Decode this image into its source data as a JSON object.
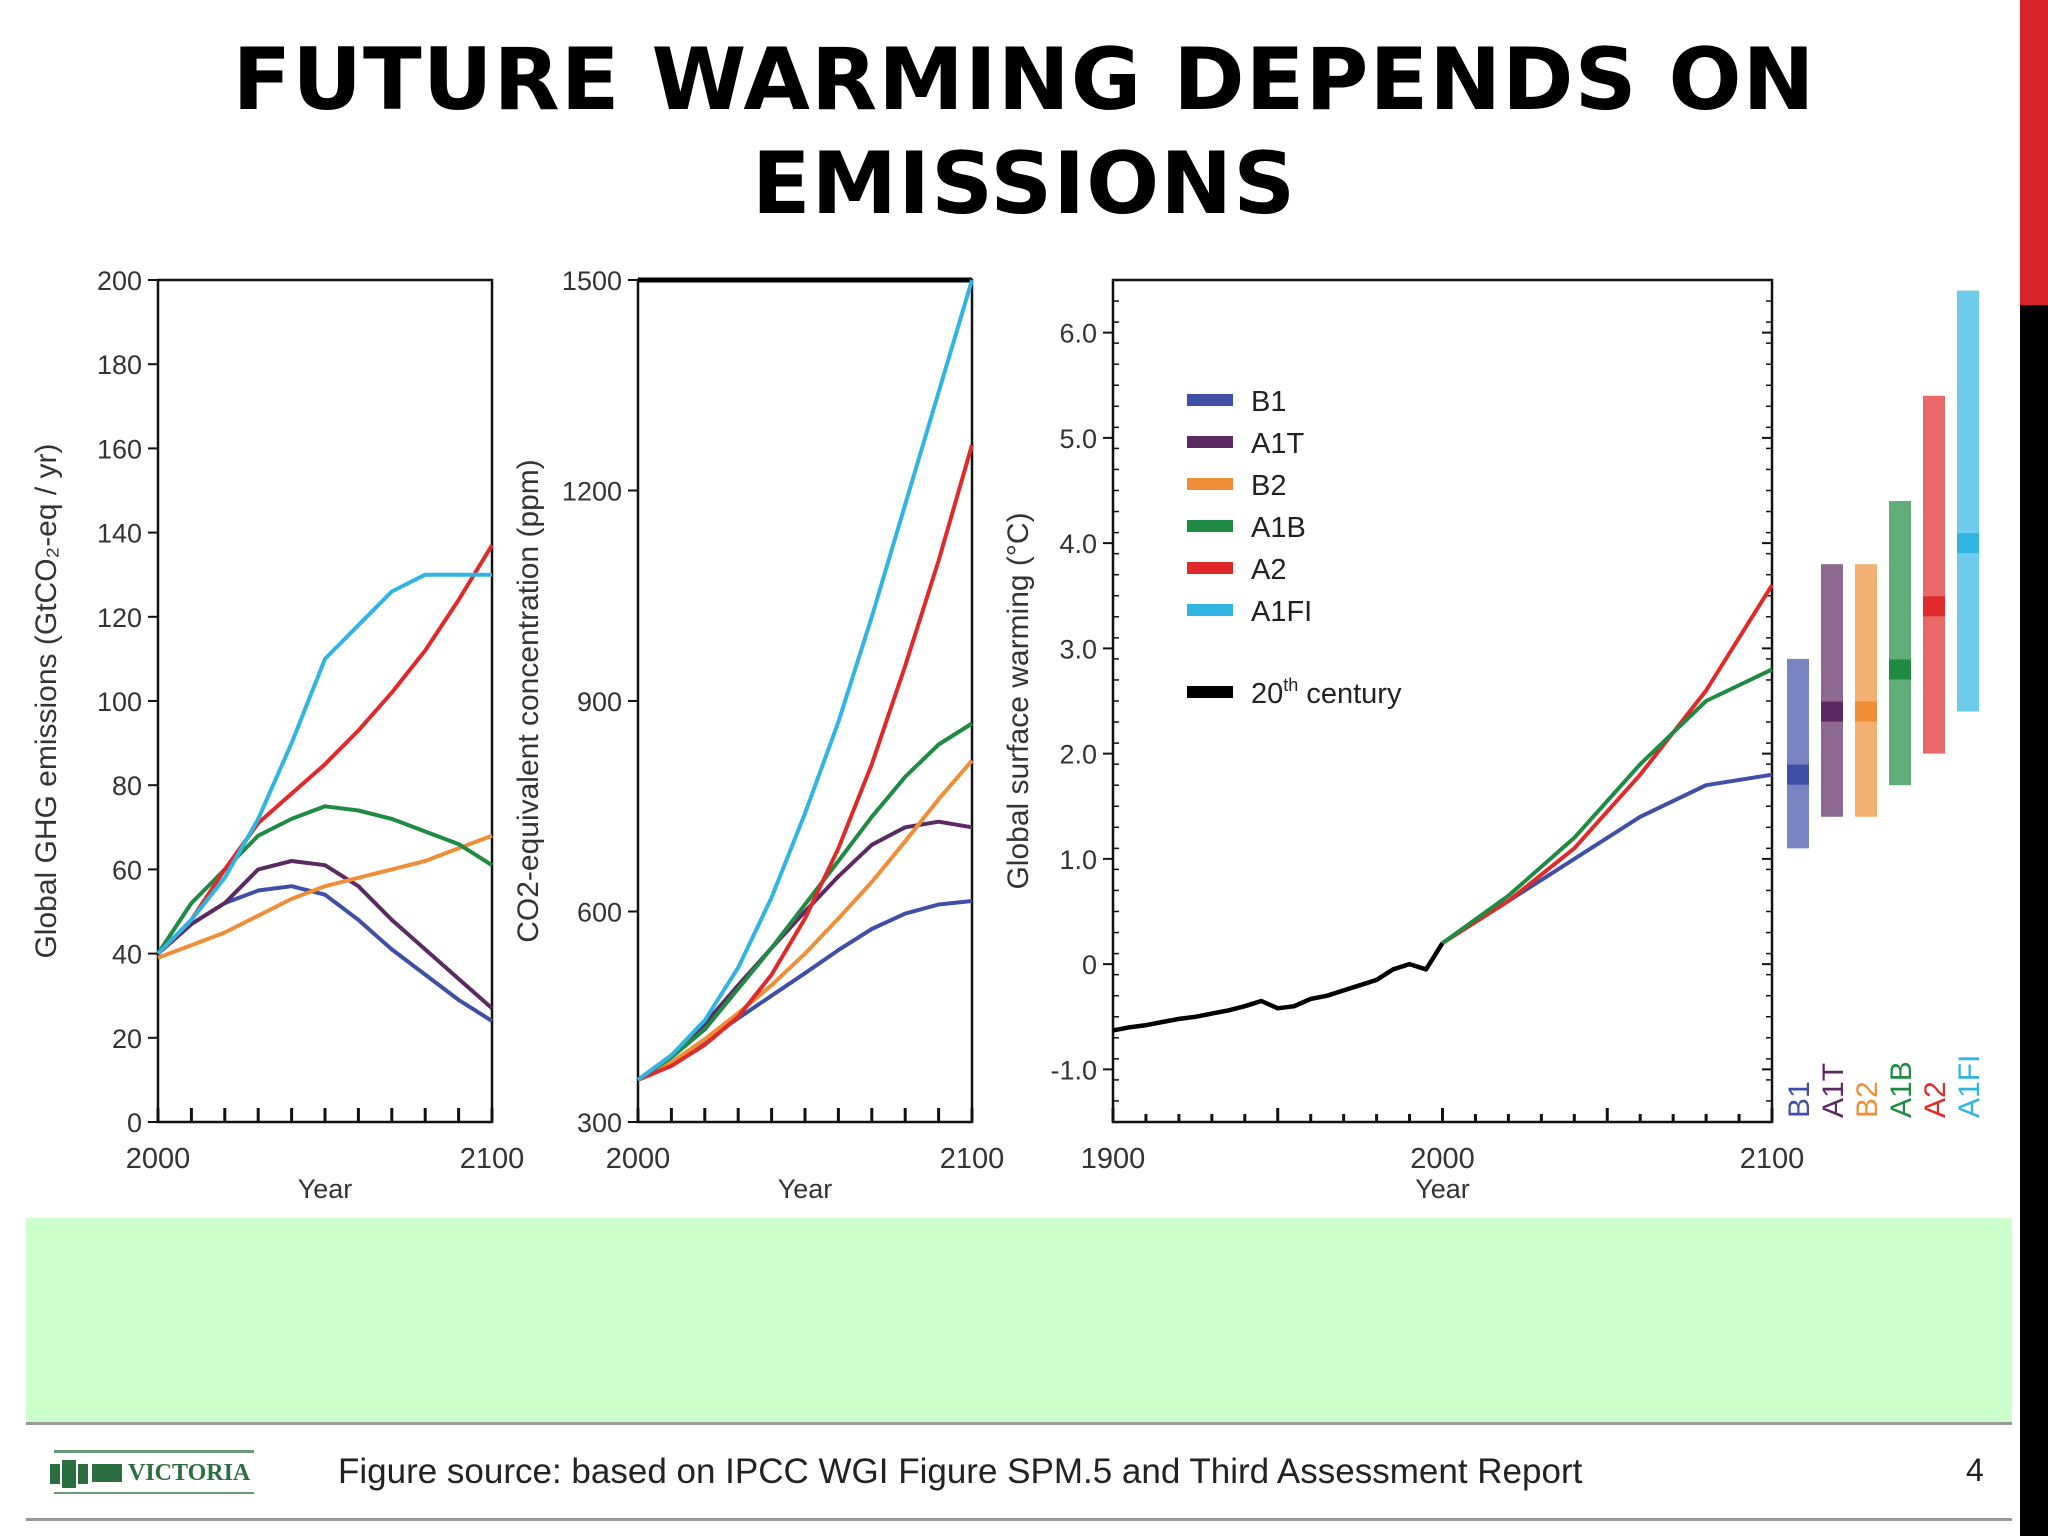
{
  "slide": {
    "title_line1": "FUTURE WARMING DEPENDS ON",
    "title_line2": "EMISSIONS",
    "footer": "Figure source: based on IPCC WGI Figure SPM.5 and Third Assessment Report",
    "page_number": "4",
    "logo_name": "VICTORIA",
    "accent_colors": {
      "red": "#d9252a",
      "black": "#000000",
      "band": "#ccffcc"
    }
  },
  "chart_data": [
    {
      "type": "line",
      "title": "",
      "xlabel": "Year",
      "ylabel": "Global GHG emissions (GtCO₂-eq / yr)",
      "xlim": [
        2000,
        2100
      ],
      "ylim": [
        0,
        200
      ],
      "x_ticks": [
        "2000",
        "2100"
      ],
      "y_ticks": [
        "0",
        "20",
        "40",
        "60",
        "80",
        "100",
        "120",
        "140",
        "160",
        "180",
        "200"
      ],
      "x": [
        2000,
        2010,
        2020,
        2030,
        2040,
        2050,
        2060,
        2070,
        2080,
        2090,
        2100
      ],
      "series": [
        {
          "name": "B1",
          "color": "#3f4fa6",
          "values": [
            40,
            47,
            52,
            55,
            56,
            54,
            48,
            41,
            35,
            29,
            24
          ]
        },
        {
          "name": "A1T",
          "color": "#5c2a63",
          "values": [
            40,
            47,
            52,
            60,
            62,
            61,
            56,
            48,
            41,
            34,
            27
          ]
        },
        {
          "name": "B2",
          "color": "#ef8e36",
          "values": [
            39,
            42,
            45,
            49,
            53,
            56,
            58,
            60,
            62,
            65,
            68
          ]
        },
        {
          "name": "A1B",
          "color": "#1e8a42",
          "values": [
            40,
            52,
            60,
            68,
            72,
            75,
            74,
            72,
            69,
            66,
            61
          ]
        },
        {
          "name": "A2",
          "color": "#e02a2a",
          "values": [
            40,
            48,
            60,
            71,
            78,
            85,
            93,
            102,
            112,
            124,
            137
          ]
        },
        {
          "name": "A1FI",
          "color": "#30b5e3",
          "values": [
            40,
            48,
            58,
            72,
            90,
            110,
            118,
            126,
            130,
            130,
            130
          ]
        }
      ]
    },
    {
      "type": "line",
      "title": "",
      "xlabel": "Year",
      "ylabel": "CO2-equivalent concentration (ppm)",
      "xlim": [
        2000,
        2100
      ],
      "ylim": [
        300,
        1500
      ],
      "x_ticks": [
        "2000",
        "2100"
      ],
      "y_ticks": [
        "300",
        "600",
        "900",
        "1200",
        "1500"
      ],
      "x": [
        2000,
        2010,
        2020,
        2030,
        2040,
        2050,
        2060,
        2070,
        2080,
        2090,
        2100
      ],
      "series": [
        {
          "name": "B1",
          "color": "#3f4fa6",
          "values": [
            360,
            385,
            415,
            448,
            480,
            512,
            545,
            575,
            597,
            610,
            615
          ]
        },
        {
          "name": "A1T",
          "color": "#5c2a63",
          "values": [
            360,
            395,
            440,
            495,
            548,
            600,
            650,
            695,
            720,
            728,
            720
          ]
        },
        {
          "name": "B2",
          "color": "#ef8e36",
          "values": [
            360,
            385,
            418,
            455,
            495,
            540,
            590,
            642,
            700,
            760,
            815
          ]
        },
        {
          "name": "A1B",
          "color": "#1e8a42",
          "values": [
            360,
            392,
            432,
            490,
            548,
            610,
            672,
            735,
            792,
            838,
            868
          ]
        },
        {
          "name": "A2",
          "color": "#e02a2a",
          "values": [
            360,
            380,
            410,
            450,
            510,
            590,
            690,
            810,
            950,
            1100,
            1265
          ]
        },
        {
          "name": "A1FI",
          "color": "#30b5e3",
          "values": [
            360,
            395,
            445,
            520,
            620,
            740,
            870,
            1020,
            1180,
            1340,
            1500
          ]
        }
      ]
    },
    {
      "type": "line",
      "title": "",
      "xlabel": "Year",
      "ylabel": "Global surface warming (°C)",
      "xlim": [
        1900,
        2100
      ],
      "ylim": [
        -1.5,
        6.5
      ],
      "x_ticks": [
        "1900",
        "2000",
        "2100"
      ],
      "y_ticks": [
        "-1.0",
        "0",
        "1.0",
        "2.0",
        "3.0",
        "4.0",
        "5.0",
        "6.0"
      ],
      "legend": "top-left",
      "legend_items": [
        {
          "name": "B1",
          "color": "#3f4fa6"
        },
        {
          "name": "A1T",
          "color": "#5c2a63"
        },
        {
          "name": "B2",
          "color": "#ef8e36"
        },
        {
          "name": "A1B",
          "color": "#1e8a42"
        },
        {
          "name": "A2",
          "color": "#e02a2a"
        },
        {
          "name": "A1FI",
          "color": "#30b5e3"
        }
      ],
      "century_label_base": "20",
      "century_label_sup": "th",
      "century_label_rest": " century",
      "century_color": "#000000",
      "series": [
        {
          "name": "20th century",
          "color": "#000000",
          "x": [
            1900,
            1905,
            1910,
            1915,
            1920,
            1925,
            1930,
            1935,
            1940,
            1945,
            1950,
            1955,
            1960,
            1965,
            1970,
            1975,
            1980,
            1985,
            1990,
            1995,
            2000
          ],
          "values": [
            -0.63,
            -0.6,
            -0.58,
            -0.55,
            -0.52,
            -0.5,
            -0.47,
            -0.44,
            -0.4,
            -0.35,
            -0.42,
            -0.4,
            -0.33,
            -0.3,
            -0.25,
            -0.2,
            -0.15,
            -0.05,
            0.0,
            -0.05,
            0.2
          ]
        },
        {
          "name": "B1",
          "color": "#3f4fa6",
          "x": [
            2000,
            2020,
            2040,
            2060,
            2080,
            2100
          ],
          "values": [
            0.2,
            0.6,
            1.0,
            1.4,
            1.7,
            1.8
          ]
        },
        {
          "name": "A2",
          "color": "#e02a2a",
          "x": [
            2000,
            2020,
            2040,
            2060,
            2080,
            2100
          ],
          "values": [
            0.2,
            0.6,
            1.1,
            1.8,
            2.6,
            3.6
          ]
        },
        {
          "name": "A1B",
          "color": "#1e8a42",
          "x": [
            2000,
            2020,
            2040,
            2060,
            2080,
            2100
          ],
          "values": [
            0.2,
            0.65,
            1.2,
            1.9,
            2.5,
            2.8
          ]
        }
      ],
      "range_bars": [
        {
          "name": "B1",
          "color": "#3f4fa6",
          "low": 1.1,
          "high": 2.9,
          "best": 1.8
        },
        {
          "name": "A1T",
          "color": "#5c2a63",
          "low": 1.4,
          "high": 3.8,
          "best": 2.4
        },
        {
          "name": "B2",
          "color": "#ef8e36",
          "low": 1.4,
          "high": 3.8,
          "best": 2.4
        },
        {
          "name": "A1B",
          "color": "#1e8a42",
          "low": 1.7,
          "high": 4.4,
          "best": 2.8
        },
        {
          "name": "A2",
          "color": "#e02a2a",
          "low": 2.0,
          "high": 5.4,
          "best": 3.4
        },
        {
          "name": "A1FI",
          "color": "#30b5e3",
          "low": 2.4,
          "high": 6.4,
          "best": 4.0
        }
      ]
    }
  ]
}
